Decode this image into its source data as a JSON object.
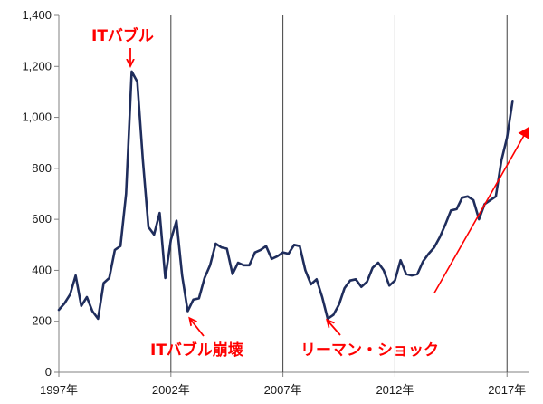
{
  "chart_data": {
    "type": "line",
    "title": "",
    "xlabel": "",
    "ylabel": "",
    "x_tick_labels": [
      "1997年",
      "2002年",
      "2007年",
      "2012年",
      "2017年"
    ],
    "y_tick_labels": [
      "0",
      "200",
      "400",
      "600",
      "800",
      "1,000",
      "1,200",
      "1,400"
    ],
    "ylim": [
      0,
      1400
    ],
    "xlim": [
      1997.0,
      2018.0
    ],
    "grid": "vertical lines at 2002, 2007, 2012, 2017",
    "series": [
      {
        "color": "#1f2d5c",
        "x": [
          1997.0,
          1997.25,
          1997.5,
          1997.75,
          1998.0,
          1998.25,
          1998.5,
          1998.75,
          1999.0,
          1999.25,
          1999.5,
          1999.75,
          2000.0,
          2000.25,
          2000.5,
          2000.75,
          2001.0,
          2001.25,
          2001.5,
          2001.75,
          2002.0,
          2002.25,
          2002.5,
          2002.75,
          2003.0,
          2003.25,
          2003.5,
          2003.75,
          2004.0,
          2004.25,
          2004.5,
          2004.75,
          2005.0,
          2005.25,
          2005.5,
          2005.75,
          2006.0,
          2006.25,
          2006.5,
          2006.75,
          2007.0,
          2007.25,
          2007.5,
          2007.75,
          2008.0,
          2008.25,
          2008.5,
          2008.75,
          2009.0,
          2009.25,
          2009.5,
          2009.75,
          2010.0,
          2010.25,
          2010.5,
          2010.75,
          2011.0,
          2011.25,
          2011.5,
          2011.75,
          2012.0,
          2012.25,
          2012.5,
          2012.75,
          2013.0,
          2013.25,
          2013.5,
          2013.75,
          2014.0,
          2014.25,
          2014.5,
          2014.75,
          2015.0,
          2015.25,
          2015.5,
          2015.75,
          2016.0,
          2016.25,
          2016.5,
          2016.75,
          2017.0,
          2017.25
        ],
        "y": [
          245,
          270,
          305,
          380,
          260,
          295,
          240,
          210,
          350,
          370,
          480,
          495,
          700,
          1180,
          1140,
          830,
          570,
          540,
          625,
          370,
          520,
          595,
          380,
          240,
          285,
          290,
          370,
          420,
          505,
          490,
          485,
          385,
          430,
          420,
          420,
          470,
          480,
          495,
          445,
          455,
          470,
          465,
          500,
          495,
          400,
          345,
          365,
          295,
          210,
          225,
          265,
          330,
          360,
          365,
          335,
          355,
          410,
          430,
          400,
          340,
          360,
          440,
          385,
          380,
          385,
          435,
          465,
          490,
          530,
          580,
          635,
          640,
          685,
          690,
          675,
          600,
          660,
          675,
          690,
          830,
          920,
          1065
        ]
      }
    ],
    "annotations": [
      {
        "text": "ITバブル",
        "color": "#ff0000"
      },
      {
        "text": "ITバブル崩壊",
        "color": "#ff0000"
      },
      {
        "text": "リーマン・ショック",
        "color": "#ff0000"
      }
    ],
    "trend_arrow": {
      "color": "#ff0000",
      "from": [
        2013.75,
        310
      ],
      "to": [
        2018.0,
        960
      ]
    }
  }
}
